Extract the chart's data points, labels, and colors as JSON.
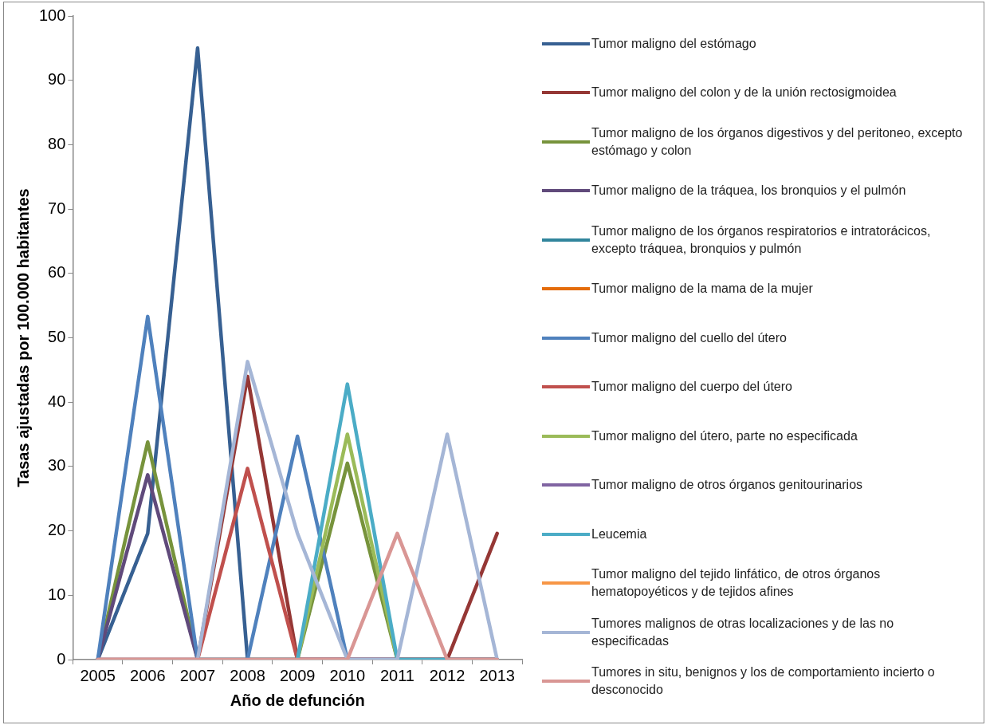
{
  "chart_data": {
    "type": "line",
    "xlabel": "Año de defunción",
    "ylabel": "Tasas ajustadas por 100.000 habitantes",
    "categories": [
      "2005",
      "2006",
      "2007",
      "2008",
      "2009",
      "2010",
      "2011",
      "2012",
      "2013"
    ],
    "ylim": [
      0,
      100
    ],
    "yticks": [
      0,
      10,
      20,
      30,
      40,
      50,
      60,
      70,
      80,
      90,
      100
    ],
    "grid": false,
    "legend": "right",
    "marker": "none",
    "line_style": "solid",
    "series": [
      {
        "name": "Tumor maligno del estómago",
        "color": "#376092",
        "values": [
          0,
          19.6,
          95,
          0,
          0,
          0,
          0,
          0,
          0
        ]
      },
      {
        "name": "Tumor maligno del colon y de la unión rectosigmoidea",
        "color": "#953735",
        "values": [
          0,
          0,
          0,
          44,
          0,
          0,
          0,
          0,
          19.6
        ]
      },
      {
        "name": "Tumor maligno de los órganos digestivos y del peritoneo, excepto estómago y colon",
        "color": "#77933c",
        "values": [
          0,
          33.8,
          0,
          0,
          0,
          30.5,
          0,
          0,
          0
        ]
      },
      {
        "name": "Tumor maligno de la tráquea, los bronquios y el pulmón",
        "color": "#604a7b",
        "values": [
          0,
          28.7,
          0,
          0,
          0,
          0,
          0,
          0,
          0
        ]
      },
      {
        "name": "Tumor maligno de los órganos respiratorios e intratorácicos, excepto tráquea, bronquios y pulmón",
        "color": "#31859c",
        "values": [
          null,
          null,
          null,
          null,
          null,
          null,
          null,
          null,
          null
        ]
      },
      {
        "name": "Tumor maligno de la mama de la mujer",
        "color": "#e46c0a",
        "values": [
          null,
          null,
          null,
          null,
          null,
          null,
          null,
          null,
          null
        ]
      },
      {
        "name": "Tumor maligno del cuello del útero",
        "color": "#4f81bd",
        "values": [
          0,
          53.3,
          0,
          0,
          34.7,
          0,
          0,
          0,
          0
        ]
      },
      {
        "name": "Tumor maligno del cuerpo del útero",
        "color": "#c0504d",
        "values": [
          0,
          0,
          0,
          29.7,
          0,
          0,
          0,
          0,
          0
        ]
      },
      {
        "name": "Tumor maligno del útero, parte no especificada",
        "color": "#9bbb59",
        "values": [
          null,
          null,
          null,
          null,
          0,
          35,
          0,
          null,
          null
        ]
      },
      {
        "name": "Tumor maligno de otros órganos genitourinarios",
        "color": "#8064a2",
        "values": [
          null,
          null,
          null,
          null,
          null,
          null,
          null,
          null,
          null
        ]
      },
      {
        "name": "Leucemia",
        "color": "#4bacc6",
        "values": [
          null,
          null,
          null,
          null,
          0,
          42.8,
          0,
          0,
          null
        ]
      },
      {
        "name": "Tumor maligno del tejido linfático, de otros órganos hematopoyéticos y de tejidos afines",
        "color": "#f79646",
        "values": [
          null,
          null,
          null,
          null,
          null,
          null,
          null,
          null,
          null
        ]
      },
      {
        "name": "Tumores malignos de otras localizaciones y de las no especificadas",
        "color": "#a5b6d6",
        "values": [
          0,
          0,
          0,
          46.3,
          19.6,
          0,
          0,
          35,
          0
        ]
      },
      {
        "name": "Tumores in situ, benignos y los de comportamiento incierto o desconocido",
        "color": "#d99694",
        "values": [
          0,
          0,
          0,
          0,
          0,
          0,
          19.6,
          0,
          0
        ]
      }
    ]
  }
}
